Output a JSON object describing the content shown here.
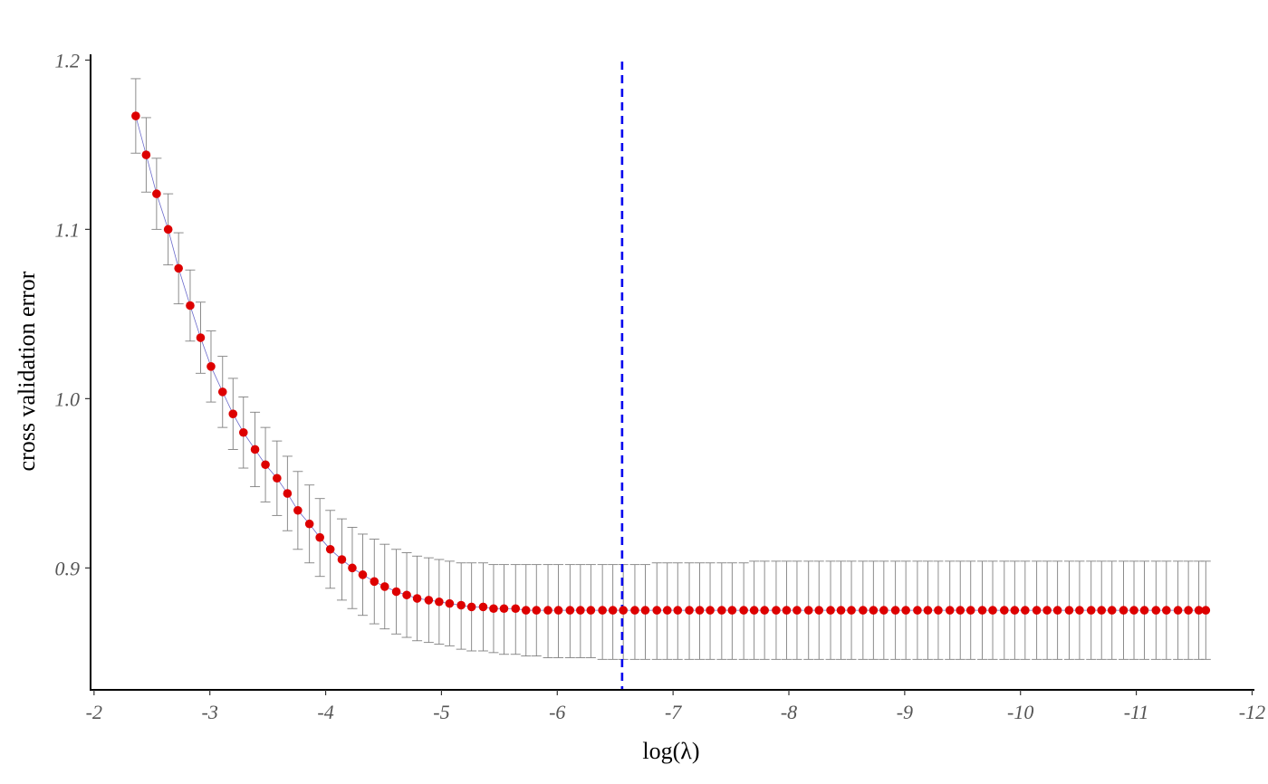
{
  "chart_data": {
    "type": "scatter",
    "title": "",
    "xlabel": "log(λ)",
    "ylabel": "cross validation error",
    "x_axis_reversed": true,
    "xlim": [
      -1.97,
      -12.02
    ],
    "ylim": [
      0.828,
      1.205
    ],
    "x_ticks": [
      -2,
      -3,
      -4,
      -5,
      -6,
      -7,
      -8,
      -9,
      -10,
      -11,
      -12
    ],
    "x_tick_labels": [
      "-2",
      "-3",
      "-4",
      "-5",
      "-6",
      "-7",
      "-8",
      "-9",
      "-10",
      "-11",
      "-12"
    ],
    "y_ticks": [
      0.9,
      1.0,
      1.1,
      1.2
    ],
    "y_tick_labels": [
      "0.9",
      "1.0",
      "1.1",
      "1.2"
    ],
    "grid": false,
    "legend": "none",
    "reference_line": {
      "x": -6.56,
      "style": "dashed",
      "color": "#0000ee"
    },
    "colors": {
      "point": "#dd0000",
      "line": "#6a6acb",
      "errorbar": "#808080"
    },
    "series": [
      {
        "log_lambda": [
          -2.36,
          -2.45,
          -2.54,
          -2.64,
          -2.73,
          -2.83,
          -2.92,
          -3.01,
          -3.11,
          -3.2,
          -3.29,
          -3.39,
          -3.48,
          -3.58,
          -3.67,
          -3.76,
          -3.86,
          -3.95,
          -4.04,
          -4.14,
          -4.23,
          -4.32,
          -4.42,
          -4.51,
          -4.61,
          -4.7,
          -4.79,
          -4.89,
          -4.98,
          -5.07,
          -5.17,
          -5.26,
          -5.36,
          -5.45,
          -5.54,
          -5.64,
          -5.73,
          -5.82,
          -5.92,
          -6.01,
          -6.11,
          -6.2,
          -6.29,
          -6.39,
          -6.48,
          -6.57,
          -6.67,
          -6.76,
          -6.86,
          -6.95,
          -7.04,
          -7.14,
          -7.23,
          -7.32,
          -7.42,
          -7.51,
          -7.61,
          -7.7,
          -7.79,
          -7.89,
          -7.98,
          -8.07,
          -8.17,
          -8.26,
          -8.36,
          -8.45,
          -8.54,
          -8.64,
          -8.73,
          -8.82,
          -8.92,
          -9.01,
          -9.11,
          -9.2,
          -9.29,
          -9.39,
          -9.48,
          -9.57,
          -9.67,
          -9.76,
          -9.86,
          -9.95,
          -10.04,
          -10.14,
          -10.23,
          -10.32,
          -10.42,
          -10.51,
          -10.61,
          -10.7,
          -10.79,
          -10.89,
          -10.98,
          -11.07,
          -11.17,
          -11.26,
          -11.36,
          -11.45,
          -11.54,
          -11.6
        ],
        "cv_error": [
          1.167,
          1.144,
          1.121,
          1.1,
          1.077,
          1.055,
          1.036,
          1.019,
          1.004,
          0.991,
          0.98,
          0.97,
          0.961,
          0.953,
          0.944,
          0.934,
          0.926,
          0.918,
          0.911,
          0.905,
          0.9,
          0.896,
          0.892,
          0.889,
          0.886,
          0.884,
          0.882,
          0.881,
          0.88,
          0.879,
          0.878,
          0.877,
          0.877,
          0.876,
          0.876,
          0.876,
          0.875,
          0.875,
          0.875,
          0.875,
          0.875,
          0.875,
          0.875,
          0.875,
          0.875,
          0.875,
          0.875,
          0.875,
          0.875,
          0.875,
          0.875,
          0.875,
          0.875,
          0.875,
          0.875,
          0.875,
          0.875,
          0.875,
          0.875,
          0.875,
          0.875,
          0.875,
          0.875,
          0.875,
          0.875,
          0.875,
          0.875,
          0.875,
          0.875,
          0.875,
          0.875,
          0.875,
          0.875,
          0.875,
          0.875,
          0.875,
          0.875,
          0.875,
          0.875,
          0.875,
          0.875,
          0.875,
          0.875,
          0.875,
          0.875,
          0.875,
          0.875,
          0.875,
          0.875,
          0.875,
          0.875,
          0.875,
          0.875,
          0.875,
          0.875,
          0.875,
          0.875,
          0.875,
          0.875,
          0.875
        ],
        "upper": [
          1.189,
          1.166,
          1.142,
          1.121,
          1.098,
          1.076,
          1.057,
          1.04,
          1.025,
          1.012,
          1.001,
          0.992,
          0.983,
          0.975,
          0.966,
          0.957,
          0.949,
          0.941,
          0.934,
          0.929,
          0.924,
          0.92,
          0.917,
          0.914,
          0.911,
          0.909,
          0.907,
          0.906,
          0.905,
          0.904,
          0.903,
          0.903,
          0.903,
          0.902,
          0.902,
          0.902,
          0.902,
          0.902,
          0.902,
          0.902,
          0.902,
          0.902,
          0.902,
          0.902,
          0.902,
          0.902,
          0.902,
          0.902,
          0.903,
          0.903,
          0.903,
          0.903,
          0.903,
          0.903,
          0.903,
          0.903,
          0.903,
          0.904,
          0.904,
          0.904,
          0.904,
          0.904,
          0.904,
          0.904,
          0.904,
          0.904,
          0.904,
          0.904,
          0.904,
          0.904,
          0.904,
          0.904,
          0.904,
          0.904,
          0.904,
          0.904,
          0.904,
          0.904,
          0.904,
          0.904,
          0.904,
          0.904,
          0.904,
          0.904,
          0.904,
          0.904,
          0.904,
          0.904,
          0.904,
          0.904,
          0.904,
          0.904,
          0.904,
          0.904,
          0.904,
          0.904,
          0.904,
          0.904,
          0.904,
          0.904
        ],
        "lower": [
          1.145,
          1.122,
          1.1,
          1.079,
          1.056,
          1.034,
          1.015,
          0.998,
          0.983,
          0.97,
          0.959,
          0.948,
          0.939,
          0.931,
          0.922,
          0.911,
          0.903,
          0.895,
          0.888,
          0.881,
          0.876,
          0.872,
          0.867,
          0.864,
          0.861,
          0.859,
          0.857,
          0.856,
          0.855,
          0.854,
          0.852,
          0.851,
          0.851,
          0.85,
          0.849,
          0.849,
          0.848,
          0.848,
          0.847,
          0.847,
          0.847,
          0.847,
          0.847,
          0.846,
          0.846,
          0.846,
          0.846,
          0.846,
          0.846,
          0.846,
          0.846,
          0.846,
          0.846,
          0.846,
          0.846,
          0.846,
          0.846,
          0.846,
          0.846,
          0.846,
          0.846,
          0.846,
          0.846,
          0.846,
          0.846,
          0.846,
          0.846,
          0.846,
          0.846,
          0.846,
          0.846,
          0.846,
          0.846,
          0.846,
          0.846,
          0.846,
          0.846,
          0.846,
          0.846,
          0.846,
          0.846,
          0.846,
          0.846,
          0.846,
          0.846,
          0.846,
          0.846,
          0.846,
          0.846,
          0.846,
          0.846,
          0.846,
          0.846,
          0.846,
          0.846,
          0.846,
          0.846,
          0.846,
          0.846,
          0.846
        ]
      }
    ]
  }
}
